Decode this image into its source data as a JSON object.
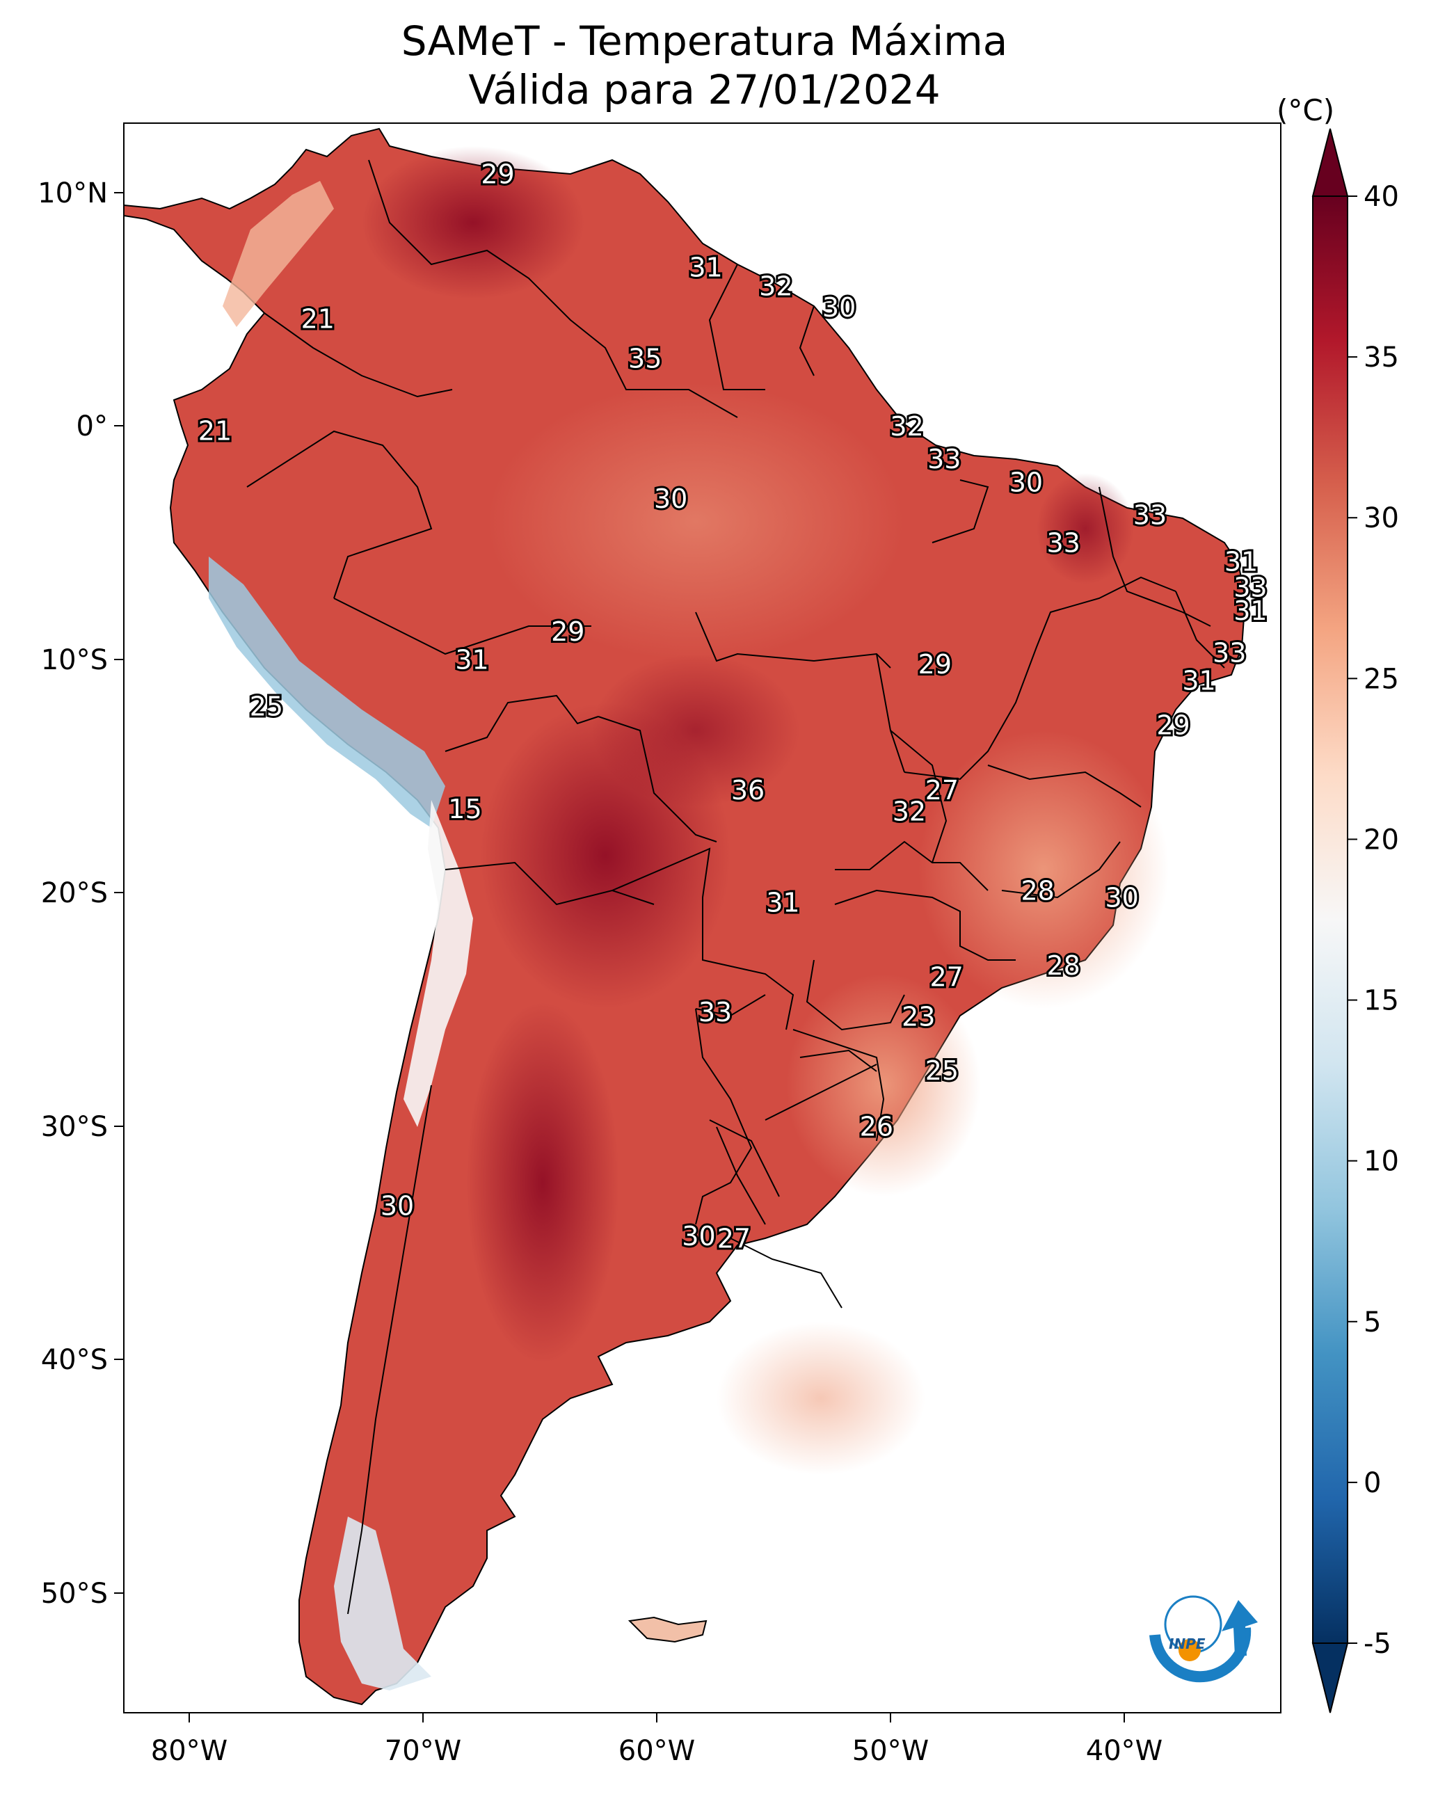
{
  "title": {
    "line1": "SAMeT - Temperatura Máxima",
    "line2": "Válida para 27/01/2024"
  },
  "colorbar": {
    "unit": "(°C)",
    "ticks": [
      "40",
      "35",
      "30",
      "25",
      "20",
      "15",
      "10",
      "5",
      "0",
      "-5"
    ],
    "min": -5,
    "max": 40,
    "colors": [
      "#053061",
      "#2166ac",
      "#4393c3",
      "#92c5de",
      "#d1e5f0",
      "#f7f7f7",
      "#fddbc7",
      "#f4a582",
      "#d6604d",
      "#b2182b",
      "#67001f"
    ]
  },
  "axes": {
    "lon_ticks": [
      "80°W",
      "70°W",
      "60°W",
      "50°W",
      "40°W"
    ],
    "lat_ticks": [
      "10°N",
      "0°",
      "10°S",
      "20°S",
      "30°S",
      "40°S",
      "50°S"
    ]
  },
  "labels": [
    {
      "v": "29",
      "lon": -66.8,
      "lat": 10.7
    },
    {
      "v": "31",
      "lon": -57.9,
      "lat": 6.7
    },
    {
      "v": "32",
      "lon": -54.9,
      "lat": 5.9
    },
    {
      "v": "30",
      "lon": -52.2,
      "lat": 5.0
    },
    {
      "v": "21",
      "lon": -74.5,
      "lat": 4.5
    },
    {
      "v": "35",
      "lon": -60.5,
      "lat": 2.8
    },
    {
      "v": "21",
      "lon": -78.9,
      "lat": -0.3
    },
    {
      "v": "32",
      "lon": -49.3,
      "lat": -0.1
    },
    {
      "v": "33",
      "lon": -47.7,
      "lat": -1.5
    },
    {
      "v": "30",
      "lon": -44.2,
      "lat": -2.5
    },
    {
      "v": "30",
      "lon": -59.4,
      "lat": -3.2
    },
    {
      "v": "33",
      "lon": -38.9,
      "lat": -3.9
    },
    {
      "v": "33",
      "lon": -42.6,
      "lat": -5.1
    },
    {
      "v": "31",
      "lon": -35.0,
      "lat": -5.9
    },
    {
      "v": "33",
      "lon": -34.6,
      "lat": -7.0
    },
    {
      "v": "31",
      "lon": -34.6,
      "lat": -8.0
    },
    {
      "v": "29",
      "lon": -63.8,
      "lat": -8.9
    },
    {
      "v": "33",
      "lon": -35.5,
      "lat": -9.8
    },
    {
      "v": "31",
      "lon": -67.9,
      "lat": -10.1
    },
    {
      "v": "29",
      "lon": -48.1,
      "lat": -10.3
    },
    {
      "v": "31",
      "lon": -36.8,
      "lat": -11.0
    },
    {
      "v": "25",
      "lon": -76.7,
      "lat": -12.1
    },
    {
      "v": "29",
      "lon": -37.9,
      "lat": -12.9
    },
    {
      "v": "36",
      "lon": -56.1,
      "lat": -15.7
    },
    {
      "v": "27",
      "lon": -47.8,
      "lat": -15.7
    },
    {
      "v": "15",
      "lon": -68.2,
      "lat": -16.5
    },
    {
      "v": "32",
      "lon": -49.2,
      "lat": -16.6
    },
    {
      "v": "28",
      "lon": -43.7,
      "lat": -20.0
    },
    {
      "v": "30",
      "lon": -40.1,
      "lat": -20.3
    },
    {
      "v": "31",
      "lon": -54.6,
      "lat": -20.5
    },
    {
      "v": "28",
      "lon": -42.6,
      "lat": -23.2
    },
    {
      "v": "27",
      "lon": -47.6,
      "lat": -23.7
    },
    {
      "v": "33",
      "lon": -57.5,
      "lat": -25.2
    },
    {
      "v": "23",
      "lon": -48.8,
      "lat": -25.4
    },
    {
      "v": "25",
      "lon": -47.8,
      "lat": -27.7
    },
    {
      "v": "26",
      "lon": -50.6,
      "lat": -30.1
    },
    {
      "v": "30",
      "lon": -71.1,
      "lat": -33.5
    },
    {
      "v": "30",
      "lon": -58.2,
      "lat": -34.8
    },
    {
      "v": "27",
      "lon": -56.7,
      "lat": -34.9
    }
  ]
}
